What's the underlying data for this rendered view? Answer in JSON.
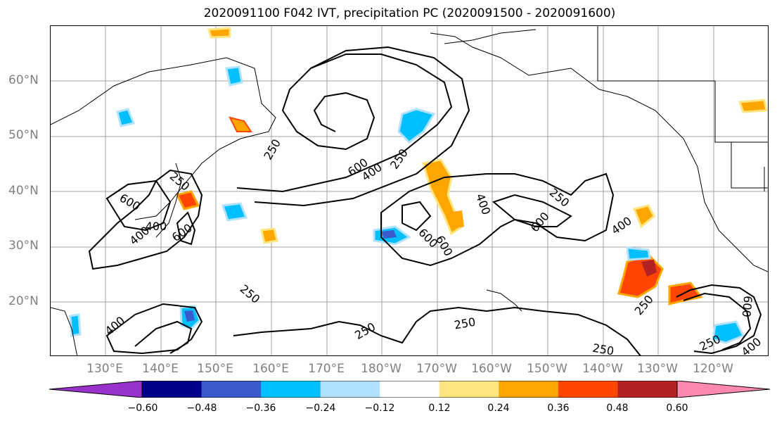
{
  "title": "2020091100 F042 IVT, precipitation PC (2020091500 - 2020091600)",
  "lat_labels": [
    "60°N",
    "50°N",
    "40°N",
    "30°N",
    "20°N"
  ],
  "lon_labels": [
    "130°E",
    "140°E",
    "150°E",
    "160°E",
    "170°E",
    "180°W",
    "170°W",
    "160°W",
    "150°W",
    "140°W",
    "130°W",
    "120°W"
  ],
  "contour_labels": [
    "250",
    "250",
    "250",
    "250",
    "250",
    "250",
    "250",
    "250",
    "250",
    "250",
    "400",
    "400",
    "400",
    "400",
    "400",
    "400",
    "400",
    "600",
    "600",
    "600",
    "600",
    "600",
    "600",
    "600"
  ],
  "colorbar": {
    "ticks": [
      "−0.60",
      "−0.48",
      "−0.36",
      "−0.24",
      "−0.12",
      "0.12",
      "0.24",
      "0.36",
      "0.48",
      "0.60"
    ],
    "colors": [
      "#9932CC",
      "#00008B",
      "#3A5BCC",
      "#00BFFF",
      "#B0E2FF",
      "#FFFFFF",
      "#FFE680",
      "#FFA500",
      "#FF4500",
      "#B22222",
      "#FF88B0"
    ]
  }
}
